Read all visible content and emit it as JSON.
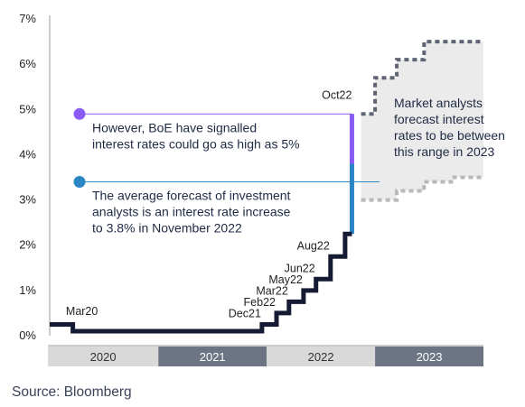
{
  "chart_data": {
    "type": "line",
    "y_ticks": [
      "0%",
      "1%",
      "2%",
      "3%",
      "4%",
      "5%",
      "6%",
      "7%"
    ],
    "ylim": [
      0,
      7
    ],
    "x_start": "2020-01-01",
    "x_end": "2024-01-01",
    "series": [
      {
        "values": [
          {
            "date": "2020-01-01",
            "rate": 0.25
          },
          {
            "date": "2020-03-19",
            "rate": 0.1
          },
          {
            "date": "2021-12-16",
            "rate": 0.25
          },
          {
            "date": "2022-02-03",
            "rate": 0.5
          },
          {
            "date": "2022-03-17",
            "rate": 0.75
          },
          {
            "date": "2022-05-05",
            "rate": 1.0
          },
          {
            "date": "2022-06-16",
            "rate": 1.25
          },
          {
            "date": "2022-08-04",
            "rate": 1.75
          },
          {
            "date": "2022-09-22",
            "rate": 2.25
          },
          {
            "date": "2022-10-15",
            "rate": 2.25
          }
        ]
      }
    ],
    "forecast_oct22": {
      "low": 2.25,
      "mid": 3.8,
      "high": 4.9
    },
    "forecast_2023_upper": [
      {
        "date": "2022-11-15",
        "rate": 4.9
      },
      {
        "date": "2023-01-01",
        "rate": 5.7
      },
      {
        "date": "2023-03-15",
        "rate": 6.1
      },
      {
        "date": "2023-06-15",
        "rate": 6.5
      },
      {
        "date": "2024-01-01",
        "rate": 6.5
      }
    ],
    "forecast_2023_lower": [
      {
        "date": "2022-11-15",
        "rate": 3.0
      },
      {
        "date": "2023-03-15",
        "rate": 3.2
      },
      {
        "date": "2023-06-15",
        "rate": 3.4
      },
      {
        "date": "2023-09-15",
        "rate": 3.5
      },
      {
        "date": "2024-01-01",
        "rate": 3.5
      }
    ],
    "step_labels": [
      {
        "text": "Mar20",
        "date": "2020-03-19",
        "rate": 0.1
      },
      {
        "text": "Dec21",
        "date": "2021-12-16",
        "rate": 0.25
      },
      {
        "text": "Feb22",
        "date": "2022-02-03",
        "rate": 0.5
      },
      {
        "text": "Mar22",
        "date": "2022-03-17",
        "rate": 0.75
      },
      {
        "text": "May22",
        "date": "2022-05-05",
        "rate": 1.0
      },
      {
        "text": "Jun22",
        "date": "2022-06-16",
        "rate": 1.25
      },
      {
        "text": "Aug22",
        "date": "2022-08-04",
        "rate": 1.75
      },
      {
        "text": "Oct22",
        "date": "2022-10-15",
        "rate": 4.9
      }
    ],
    "years": [
      {
        "label": "2020",
        "start": "2020-01-01",
        "end": "2021-01-01",
        "bg": "#d9d9d9",
        "fg": "#333333"
      },
      {
        "label": "2021",
        "start": "2021-01-01",
        "end": "2022-01-01",
        "bg": "#6d7585",
        "fg": "#ffffff"
      },
      {
        "label": "2022",
        "start": "2022-01-01",
        "end": "2023-01-01",
        "bg": "#d9d9d9",
        "fg": "#333333"
      },
      {
        "label": "2023",
        "start": "2023-01-01",
        "end": "2024-01-01",
        "bg": "#6d7585",
        "fg": "#ffffff"
      }
    ],
    "annotations": [
      {
        "key": "boe",
        "rate": 4.9,
        "color": "#8a5cf6",
        "lines": [
          "However, BoE have signalled",
          "interest rates could go as high as 5%"
        ]
      },
      {
        "key": "average",
        "rate": 3.4,
        "color": "#2b86c5",
        "lines": [
          "The average forecast of investment",
          "analysts is an interest rate increase",
          "to 3.8% in November 2022"
        ]
      }
    ],
    "market_note": [
      "Market analysts",
      "forecast interest",
      "rates to be between",
      "this range in 2023"
    ],
    "colors": {
      "line": "#141b33",
      "boe": "#8a5cf6",
      "average": "#2b86c5",
      "forecast_band": "#ebebeb",
      "forecast_dash": "#5f6575"
    }
  },
  "source": "Source: Bloomberg"
}
